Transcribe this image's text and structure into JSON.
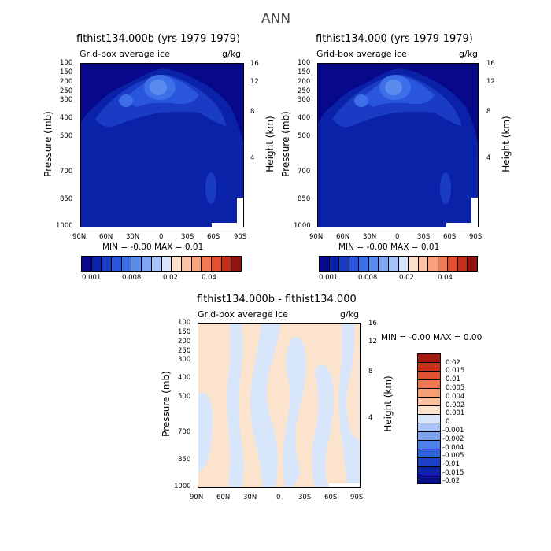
{
  "page_title": "ANN",
  "colors": {
    "seq": [
      "#08088a",
      "#0a22a8",
      "#1a3bc4",
      "#2a55dd",
      "#3c6fe8",
      "#5a8cee",
      "#7ea6f2",
      "#a6c2f6",
      "#d8e4fb",
      "#fde0cc",
      "#fbc3a4",
      "#f8a27b",
      "#f27a52",
      "#e44f2f",
      "#c42e1b",
      "#8f1410"
    ],
    "diff": [
      "#0a0f8c",
      "#1022ad",
      "#1e40c8",
      "#3160dc",
      "#4d80ea",
      "#7aa2f0",
      "#a9c3f5",
      "#d7e6fb",
      "#fbe3cd",
      "#f9c3a2",
      "#f69e74",
      "#ef784c",
      "#e2512f",
      "#c9321b",
      "#a21a10"
    ]
  },
  "chart_data": [
    {
      "type": "heatmap",
      "title": "flthist134.000b (yrs 1979-1979)",
      "subtitle_left": "Grid-box average ice",
      "subtitle_right": "g/kg",
      "ylabel": "Pressure (mb)",
      "ylabel_right": "Height (km)",
      "x_ticks": [
        "90N",
        "60N",
        "30N",
        "0",
        "30S",
        "60S",
        "90S"
      ],
      "y_ticks": [
        "100",
        "150",
        "200",
        "250",
        "300",
        "400",
        "500",
        "700",
        "850",
        "1000"
      ],
      "y_right_ticks": [
        "16",
        "12",
        "8",
        "4"
      ],
      "min_max": "MIN =   -0.00   MAX =    0.01",
      "colorbar_labels": [
        "0.001",
        "0.008",
        "0.02",
        "0.04"
      ],
      "ylim": [
        1000,
        100
      ]
    },
    {
      "type": "heatmap",
      "title": "flthist134.000 (yrs 1979-1979)",
      "subtitle_left": "Grid-box average ice",
      "subtitle_right": "g/kg",
      "ylabel": "Pressure (mb)",
      "ylabel_right": "Height (km)",
      "x_ticks": [
        "90N",
        "60N",
        "30N",
        "0",
        "30S",
        "60S",
        "90S"
      ],
      "y_ticks": [
        "100",
        "150",
        "200",
        "250",
        "300",
        "400",
        "500",
        "700",
        "850",
        "1000"
      ],
      "y_right_ticks": [
        "16",
        "12",
        "8",
        "4"
      ],
      "min_max": "MIN =   -0.00   MAX =    0.01",
      "colorbar_labels": [
        "0.001",
        "0.008",
        "0.02",
        "0.04"
      ],
      "ylim": [
        1000,
        100
      ]
    },
    {
      "type": "heatmap",
      "title": "flthist134.000b - flthist134.000",
      "subtitle_left": "Grid-box average ice",
      "subtitle_right": "g/kg",
      "ylabel": "Pressure (mb)",
      "ylabel_right": "Height (km)",
      "x_ticks": [
        "90N",
        "60N",
        "30N",
        "0",
        "30S",
        "60S",
        "90S"
      ],
      "y_ticks": [
        "100",
        "150",
        "200",
        "250",
        "300",
        "400",
        "500",
        "700",
        "850",
        "1000"
      ],
      "y_right_ticks": [
        "16",
        "12",
        "8",
        "4"
      ],
      "min_max": "MIN =   -0.00   MAX =    0.00",
      "colorbar_labels": [
        "0.02",
        "0.015",
        "0.01",
        "0.005",
        "0.004",
        "0.002",
        "0.001",
        "0",
        "-0.001",
        "-0.002",
        "-0.004",
        "-0.005",
        "-0.01",
        "-0.015",
        "-0.02"
      ],
      "ylim": [
        1000,
        100
      ]
    }
  ]
}
